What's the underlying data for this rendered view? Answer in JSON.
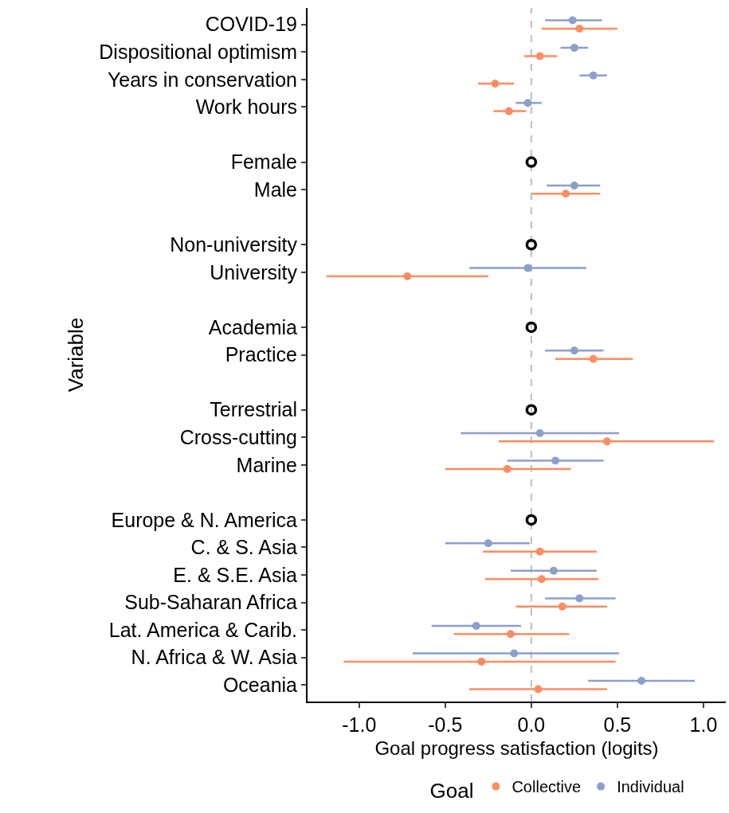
{
  "chart_data": {
    "type": "scatter",
    "xlabel": "Goal progress satisfaction (logits)",
    "ylabel": "Variable",
    "legend_title": "Goal",
    "categories": [
      "COVID-19",
      "Dispositional optimism",
      "Years in conservation",
      "Work hours",
      null,
      "Female",
      "Male",
      null,
      "Non-university",
      "University",
      null,
      "Academia",
      "Practice",
      null,
      "Terrestrial",
      "Cross-cutting",
      "Marine",
      null,
      "Europe & N. America",
      "C. & S. Asia",
      "E. & S.E. Asia",
      "Sub-Saharan Africa",
      "Lat. America & Carib.",
      "N. Africa & W. Asia",
      "Oceania"
    ],
    "series": [
      {
        "name": "Collective",
        "color": "#fc8d62",
        "values": [
          0.28,
          0.05,
          -0.21,
          -0.13,
          null,
          null,
          0.2,
          null,
          null,
          -0.72,
          null,
          null,
          0.36,
          null,
          null,
          0.44,
          -0.14,
          null,
          null,
          0.05,
          0.06,
          0.18,
          -0.12,
          -0.29,
          0.04
        ],
        "errors": [
          [
            0.06,
            0.5
          ],
          [
            -0.04,
            0.15
          ],
          [
            -0.31,
            -0.1
          ],
          [
            -0.22,
            -0.03
          ],
          null,
          null,
          [
            0,
            0.4
          ],
          null,
          null,
          [
            -1.19,
            -0.25
          ],
          null,
          null,
          [
            0.14,
            0.59
          ],
          null,
          null,
          [
            -0.19,
            1.06
          ],
          [
            -0.5,
            0.23
          ],
          null,
          null,
          [
            -0.28,
            0.38
          ],
          [
            -0.27,
            0.39
          ],
          [
            -0.09,
            0.44
          ],
          [
            -0.45,
            0.22
          ],
          [
            -1.09,
            0.49
          ],
          [
            -0.36,
            0.44
          ]
        ]
      },
      {
        "name": "Individual",
        "color": "#8da0cb",
        "values": [
          0.24,
          0.25,
          0.36,
          -0.02,
          null,
          null,
          0.25,
          null,
          null,
          -0.02,
          null,
          null,
          0.25,
          null,
          null,
          0.05,
          0.14,
          null,
          null,
          -0.25,
          0.13,
          0.28,
          -0.32,
          -0.1,
          0.64
        ],
        "errors": [
          [
            0.08,
            0.41
          ],
          [
            0.17,
            0.33
          ],
          [
            0.28,
            0.44
          ],
          [
            -0.09,
            0.06
          ],
          null,
          null,
          [
            0.09,
            0.4
          ],
          null,
          null,
          [
            -0.36,
            0.32
          ],
          null,
          null,
          [
            0.08,
            0.42
          ],
          null,
          null,
          [
            -0.41,
            0.51
          ],
          [
            -0.14,
            0.42
          ],
          null,
          null,
          [
            -0.5,
            -0.01
          ],
          [
            -0.12,
            0.38
          ],
          [
            0.08,
            0.49
          ],
          [
            -0.58,
            -0.06
          ],
          [
            -0.69,
            0.51
          ],
          [
            0.33,
            0.95
          ]
        ]
      },
      {
        "color": "#000000",
        "values": [
          null,
          null,
          null,
          null,
          null,
          0,
          null,
          null,
          0,
          null,
          null,
          0,
          null,
          null,
          0,
          null,
          null,
          null,
          0,
          null,
          null,
          null,
          null,
          null,
          null
        ]
      }
    ],
    "xlim": [
      -1.3,
      1.13
    ],
    "xticks": [
      {
        "value": -1,
        "label": "-1.0"
      },
      {
        "value": -0.5,
        "label": "-0.5"
      },
      {
        "value": 0,
        "label": "0.0"
      },
      {
        "value": 0.5,
        "label": "0.5"
      },
      {
        "value": 1,
        "label": "1.0"
      }
    ],
    "ref_lines": [
      {
        "axis": "x",
        "value": 0,
        "color": "#bebebe",
        "line_style": "dashed"
      }
    ],
    "grid": false,
    "legend": "bottom",
    "marker": "circle",
    "orientation": "horizontal"
  }
}
